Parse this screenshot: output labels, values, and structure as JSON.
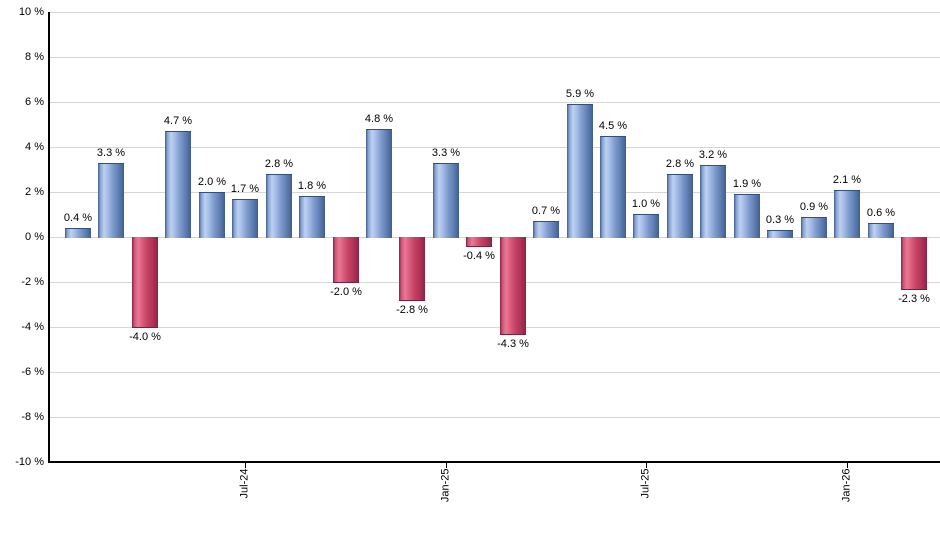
{
  "chart_data": {
    "type": "bar",
    "title": "",
    "xlabel": "",
    "ylabel": "",
    "ylim": [
      -10,
      10
    ],
    "y_tick_step": 2,
    "grid": true,
    "legend": false,
    "y_tick_labels": [
      "10 %",
      "8 %",
      "6 %",
      "4 %",
      "2 %",
      "0 %",
      "-2 %",
      "-4 %",
      "-6 %",
      "-8 %",
      "-10 %"
    ],
    "y_tick_values": [
      10,
      8,
      6,
      4,
      2,
      0,
      -2,
      -4,
      -6,
      -8,
      -10
    ],
    "values": [
      0.4,
      3.3,
      -4.0,
      4.7,
      2.0,
      1.7,
      2.8,
      1.8,
      -2.0,
      4.8,
      -2.8,
      3.3,
      -0.4,
      -4.3,
      0.7,
      5.9,
      4.5,
      1.0,
      2.8,
      3.2,
      1.9,
      0.3,
      0.9,
      2.1,
      0.6,
      -2.3
    ],
    "bar_labels": [
      "0.4 %",
      "3.3 %",
      "-4.0 %",
      "4.7 %",
      "2.0 %",
      "1.7 %",
      "2.8 %",
      "1.8 %",
      "-2.0 %",
      "4.8 %",
      "-2.8 %",
      "3.3 %",
      "-0.4 %",
      "-4.3 %",
      "0.7 %",
      "5.9 %",
      "4.5 %",
      "1.0 %",
      "2.8 %",
      "3.2 %",
      "1.9 %",
      "0.3 %",
      "0.9 %",
      "2.1 %",
      "0.6 %",
      "-2.3 %"
    ],
    "x_ticks": [
      {
        "label": "Jul-24",
        "bar_index": 5
      },
      {
        "label": "Jan-25",
        "bar_index": 11
      },
      {
        "label": "Jul-25",
        "bar_index": 17
      },
      {
        "label": "Jan-26",
        "bar_index": 23
      }
    ]
  },
  "colors": {
    "positive_bar": {
      "edge": "#3f5e8e",
      "highlight": "#bdd1f2",
      "body": "#6080b5"
    },
    "negative_bar": {
      "edge": "#8a2242",
      "highlight": "#ee7795",
      "body": "#b53258"
    },
    "gridline": "#d6d6d6",
    "axis": "#000000",
    "label_text": "#000000"
  }
}
